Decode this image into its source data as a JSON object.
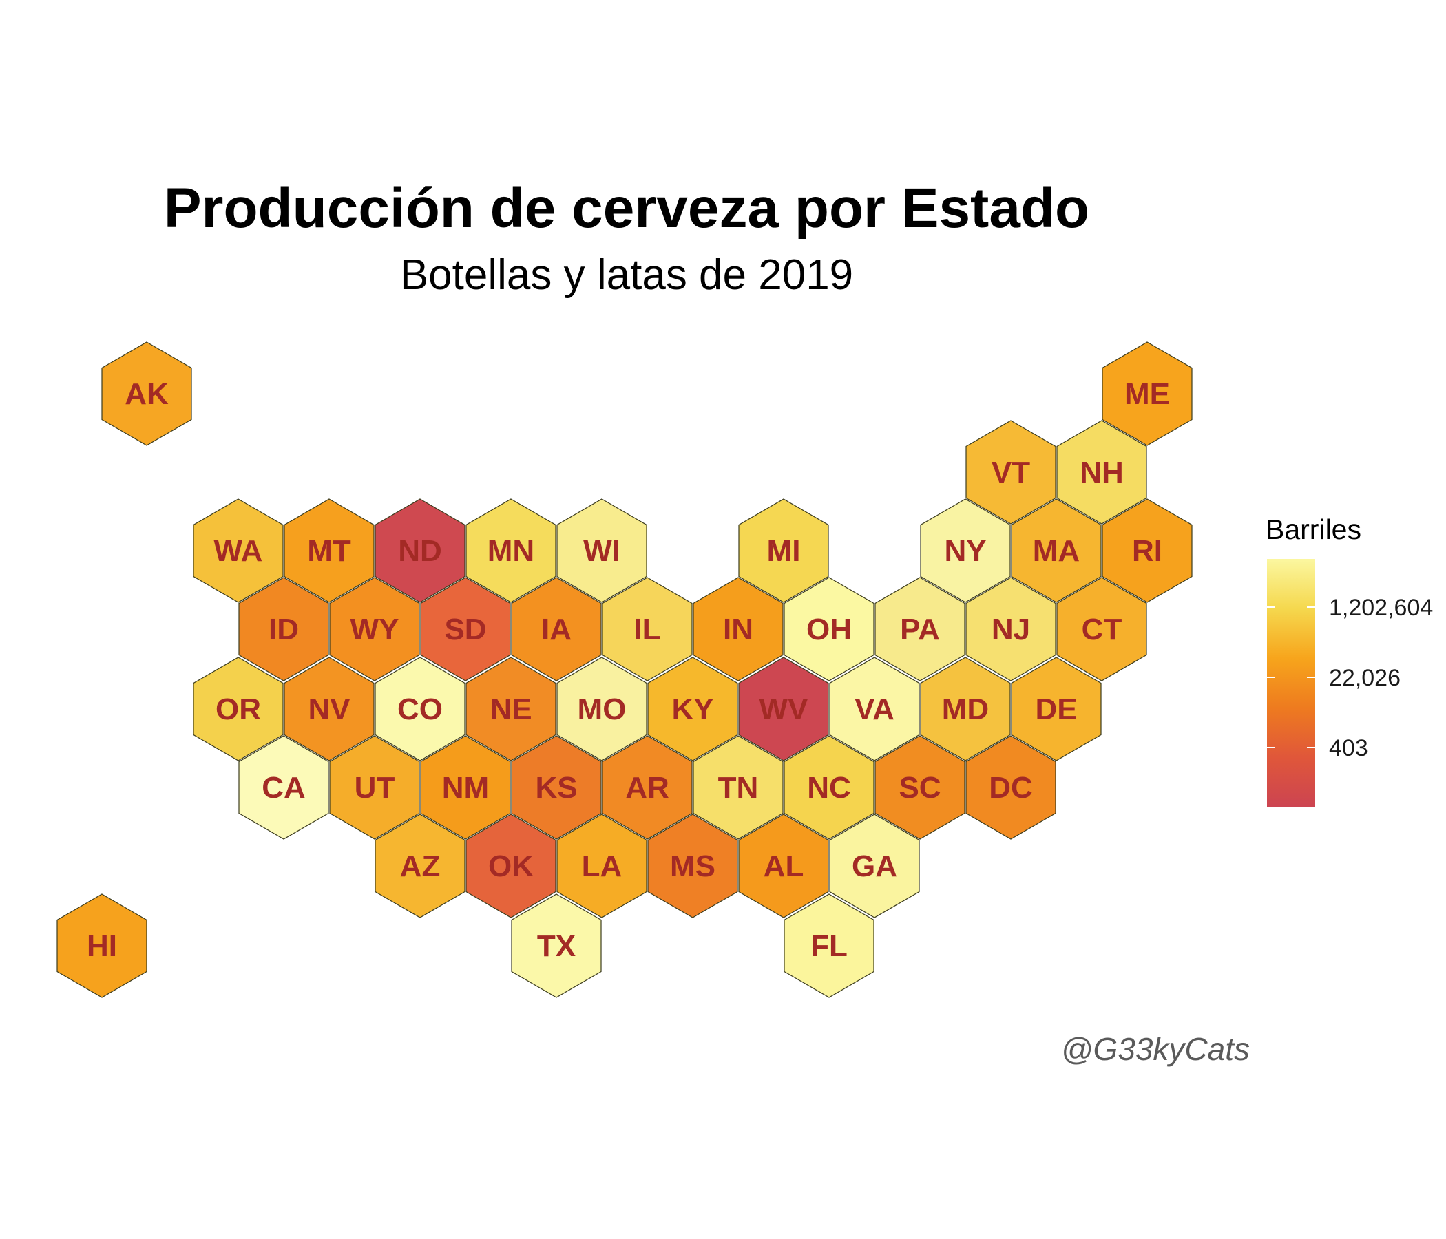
{
  "title": "Producción de cerveza por Estado",
  "subtitle": "Botellas y latas de 2019",
  "caption": "@G33kyCats",
  "legend": {
    "title": "Barriles",
    "ticks": [
      "1,202,604",
      "22,026",
      "403"
    ],
    "colors": [
      "#fbf7a0",
      "#f5d84e",
      "#f7a51c",
      "#ee7b1f",
      "#e0573a",
      "#cc4451"
    ]
  },
  "chart_data": {
    "type": "hexbin-map",
    "value_label": "Barriles",
    "scale": "log",
    "states": [
      {
        "abbr": "AK",
        "color": "#f6a623"
      },
      {
        "abbr": "HI",
        "color": "#f6a21d"
      },
      {
        "abbr": "ME",
        "color": "#f7a41d"
      },
      {
        "abbr": "VT",
        "color": "#f6ba35"
      },
      {
        "abbr": "NH",
        "color": "#f5dc62"
      },
      {
        "abbr": "WA",
        "color": "#f5c13a"
      },
      {
        "abbr": "MT",
        "color": "#f6a01e"
      },
      {
        "abbr": "ND",
        "color": "#cf4950"
      },
      {
        "abbr": "MN",
        "color": "#f5dc5c"
      },
      {
        "abbr": "WI",
        "color": "#f8ec8e"
      },
      {
        "abbr": "MI",
        "color": "#f5d752"
      },
      {
        "abbr": "NY",
        "color": "#f9f3a3"
      },
      {
        "abbr": "MA",
        "color": "#f6b630"
      },
      {
        "abbr": "RI",
        "color": "#f6a21d"
      },
      {
        "abbr": "ID",
        "color": "#f18822"
      },
      {
        "abbr": "WY",
        "color": "#f39020"
      },
      {
        "abbr": "SD",
        "color": "#e8663b"
      },
      {
        "abbr": "IA",
        "color": "#f39120"
      },
      {
        "abbr": "IL",
        "color": "#f6d55a"
      },
      {
        "abbr": "IN",
        "color": "#f59e1c"
      },
      {
        "abbr": "OH",
        "color": "#fbf8a2"
      },
      {
        "abbr": "PA",
        "color": "#f7ea8c"
      },
      {
        "abbr": "NJ",
        "color": "#f6e070"
      },
      {
        "abbr": "CT",
        "color": "#f6b02c"
      },
      {
        "abbr": "OR",
        "color": "#f4d14c"
      },
      {
        "abbr": "NV",
        "color": "#f39422"
      },
      {
        "abbr": "CO",
        "color": "#fbf9ad"
      },
      {
        "abbr": "NE",
        "color": "#f18c25"
      },
      {
        "abbr": "MO",
        "color": "#f9f1a0"
      },
      {
        "abbr": "KY",
        "color": "#f6b82c"
      },
      {
        "abbr": "WV",
        "color": "#cd4751"
      },
      {
        "abbr": "VA",
        "color": "#fbf6a5"
      },
      {
        "abbr": "MD",
        "color": "#f5c23f"
      },
      {
        "abbr": "DE",
        "color": "#f6b42e"
      },
      {
        "abbr": "CA",
        "color": "#fcfab8"
      },
      {
        "abbr": "UT",
        "color": "#f5ad2a"
      },
      {
        "abbr": "NM",
        "color": "#f59c1b"
      },
      {
        "abbr": "KS",
        "color": "#ed7c28"
      },
      {
        "abbr": "AR",
        "color": "#f18a24"
      },
      {
        "abbr": "TN",
        "color": "#f6df6a"
      },
      {
        "abbr": "NC",
        "color": "#f5d44e"
      },
      {
        "abbr": "SC",
        "color": "#f18d21"
      },
      {
        "abbr": "DC",
        "color": "#f18a21"
      },
      {
        "abbr": "AZ",
        "color": "#f6b630"
      },
      {
        "abbr": "OK",
        "color": "#e5643b"
      },
      {
        "abbr": "LA",
        "color": "#f6ac25"
      },
      {
        "abbr": "MS",
        "color": "#ef8025"
      },
      {
        "abbr": "AL",
        "color": "#f59a1c"
      },
      {
        "abbr": "GA",
        "color": "#faf49f"
      },
      {
        "abbr": "TX",
        "color": "#fbf8a9"
      },
      {
        "abbr": "FL",
        "color": "#fbf59c"
      }
    ]
  }
}
